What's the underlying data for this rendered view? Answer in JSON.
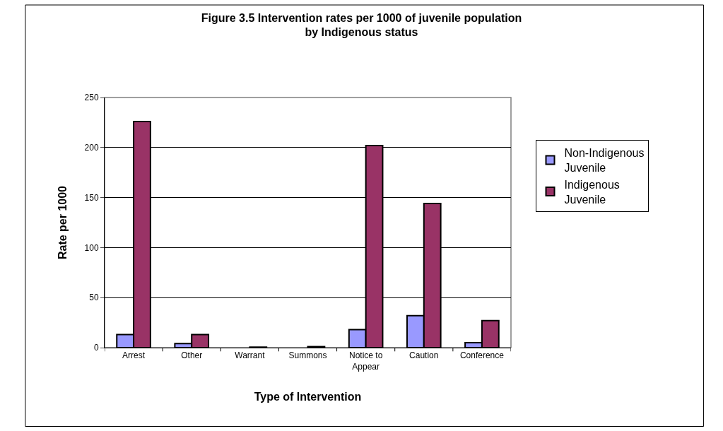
{
  "chart_data": {
    "type": "bar",
    "title": "Figure 3.5 Intervention rates per 1000 of juvenile population by Indigenous status",
    "xlabel": "Type of Intervention",
    "ylabel": "Rate per 1000",
    "categories": [
      "Arrest",
      "Other",
      "Warrant",
      "Summons",
      "Notice to Appear",
      "Caution",
      "Conference"
    ],
    "series": [
      {
        "name": "Non-Indigenous Juvenile",
        "color": "#9999ff",
        "values": [
          13,
          4,
          0,
          0,
          18,
          32,
          5
        ]
      },
      {
        "name": "Indigenous Juvenile",
        "color": "#993366",
        "values": [
          226,
          13,
          0.5,
          1,
          202,
          144,
          27
        ]
      }
    ],
    "ylim": [
      0,
      250
    ],
    "yticks": [
      0,
      50,
      100,
      150,
      200,
      250
    ],
    "grid": "y",
    "legend": "right"
  }
}
